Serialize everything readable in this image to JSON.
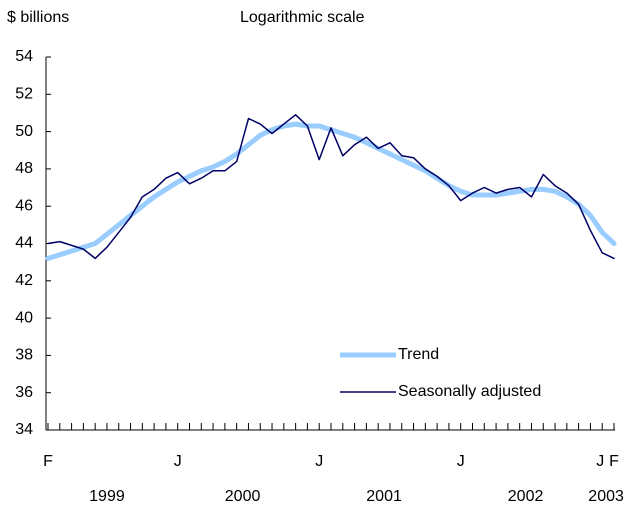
{
  "chart_data": {
    "type": "line",
    "y_label": "$ billions",
    "subtitle": "Logarithmic scale",
    "categories": [
      "F",
      null,
      null,
      null,
      null,
      null,
      null,
      null,
      null,
      null,
      null,
      "J",
      null,
      null,
      null,
      null,
      null,
      null,
      null,
      null,
      null,
      null,
      null,
      "J",
      null,
      null,
      null,
      null,
      null,
      null,
      null,
      null,
      null,
      null,
      null,
      "J",
      null,
      null,
      null,
      null,
      null,
      null,
      null,
      null,
      null,
      null,
      null,
      "J",
      "F"
    ],
    "years": [
      "1999",
      "2000",
      "2001",
      "2002",
      "2003"
    ],
    "series": [
      {
        "name": "Trend",
        "color": "#99ccff",
        "width": 5,
        "values": [
          43.2,
          43.4,
          43.6,
          43.8,
          44.0,
          44.5,
          45.0,
          45.5,
          46.0,
          46.5,
          46.9,
          47.3,
          47.6,
          47.9,
          48.1,
          48.4,
          48.8,
          49.3,
          49.8,
          50.1,
          50.3,
          50.4,
          50.3,
          50.3,
          50.1,
          49.9,
          49.7,
          49.4,
          49.1,
          48.8,
          48.5,
          48.2,
          47.9,
          47.5,
          47.1,
          46.8,
          46.6,
          46.6,
          46.6,
          46.7,
          46.8,
          46.9,
          46.9,
          46.8,
          46.5,
          46.1,
          45.5,
          44.6,
          44.0
        ]
      },
      {
        "name": "Seasonally adjusted",
        "color": "#000066",
        "width": 1.5,
        "values": [
          44.0,
          44.1,
          43.9,
          43.7,
          43.2,
          43.8,
          44.6,
          45.4,
          46.5,
          46.9,
          47.5,
          47.8,
          47.2,
          47.5,
          47.9,
          47.9,
          48.4,
          50.7,
          50.4,
          49.9,
          50.4,
          50.9,
          50.3,
          48.5,
          50.2,
          48.7,
          49.3,
          49.7,
          49.1,
          49.4,
          48.7,
          48.6,
          48.0,
          47.6,
          47.1,
          46.3,
          46.7,
          47.0,
          46.7,
          46.9,
          47.0,
          46.5,
          47.7,
          47.1,
          46.7,
          46.1,
          44.7,
          43.5,
          43.2
        ]
      }
    ],
    "ylim": [
      34,
      54
    ],
    "yticks": [
      34,
      36,
      38,
      40,
      42,
      44,
      46,
      48,
      50,
      52,
      54
    ],
    "legend": "lower right"
  }
}
